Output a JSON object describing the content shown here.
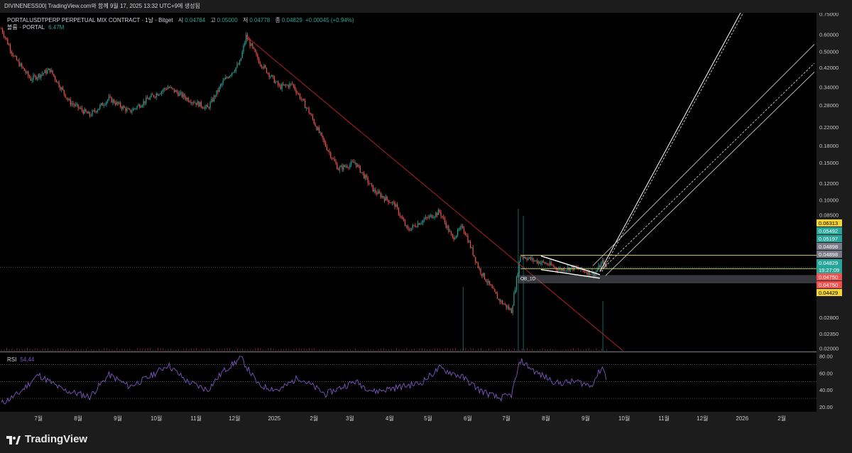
{
  "header": {
    "publisher_line": "DIVINENESS00| TradingView.com와 함께 9월 17, 2025 13:32 UTC+9에 생성됨"
  },
  "symbol": {
    "title": "PORTALUSDTPERP PERPETUAL MIX CONTRACT · 1날 · Bitget",
    "open_label": "시",
    "open": "0.04784",
    "high_label": "고",
    "high": "0.05000",
    "low_label": "저",
    "low": "0.04778",
    "close_label": "종",
    "close": "0.04829",
    "change": "+0.00045 (+0.94%)"
  },
  "volume": {
    "label": "볼륨 · PORTAL",
    "value": "6.47M"
  },
  "rsi": {
    "label": "RSI",
    "value": "54.44"
  },
  "brand": {
    "name": "TradingView"
  },
  "colors": {
    "background": "#000000",
    "frame": "#1c1c1c",
    "up": "#26a69a",
    "down": "#ef5350",
    "rsi_line": "#7e57c2",
    "trendline": "#b22222",
    "range_line": "#e6e05a"
  },
  "chart_data": [
    {
      "type": "candlestick",
      "title": "PORTALUSDTPERP PERPETUAL MIX CONTRACT · 1날 · Bitget",
      "scale": "log",
      "ylim": [
        0.0195,
        0.76
      ],
      "y_ticks": [
        "0.75000",
        "0.60000",
        "0.50000",
        "0.42000",
        "0.34000",
        "0.28000",
        "0.22000",
        "0.18000",
        "0.15000",
        "0.12000",
        "0.10000",
        "0.08500",
        "0.02800",
        "0.02350",
        "0.02000"
      ],
      "x_ticks": [
        "7월",
        "8월",
        "9월",
        "10월",
        "11월",
        "12월",
        "2025",
        "2월",
        "3월",
        "4월",
        "5월",
        "6월",
        "7월",
        "8월",
        "9월",
        "10월",
        "11월",
        "12월",
        "2026",
        "2월"
      ],
      "x_range": [
        "2024-06-01",
        "2026-02-28"
      ],
      "price_path": [
        [
          "2024-06-02",
          0.64
        ],
        [
          "2024-06-12",
          0.47
        ],
        [
          "2024-06-25",
          0.37
        ],
        [
          "2024-07-10",
          0.41
        ],
        [
          "2024-07-25",
          0.29
        ],
        [
          "2024-08-10",
          0.25
        ],
        [
          "2024-08-25",
          0.3
        ],
        [
          "2024-09-10",
          0.26
        ],
        [
          "2024-09-25",
          0.3
        ],
        [
          "2024-10-10",
          0.34
        ],
        [
          "2024-10-25",
          0.3
        ],
        [
          "2024-11-10",
          0.27
        ],
        [
          "2024-11-22",
          0.36
        ],
        [
          "2024-12-05",
          0.44
        ],
        [
          "2024-12-10",
          0.59
        ],
        [
          "2024-12-20",
          0.45
        ],
        [
          "2025-01-05",
          0.34
        ],
        [
          "2025-01-15",
          0.35
        ],
        [
          "2025-01-28",
          0.26
        ],
        [
          "2025-02-10",
          0.18
        ],
        [
          "2025-02-20",
          0.14
        ],
        [
          "2025-03-05",
          0.15
        ],
        [
          "2025-03-20",
          0.11
        ],
        [
          "2025-04-05",
          0.095
        ],
        [
          "2025-04-15",
          0.072
        ],
        [
          "2025-04-25",
          0.079
        ],
        [
          "2025-05-10",
          0.088
        ],
        [
          "2025-05-20",
          0.066
        ],
        [
          "2025-05-28",
          0.075
        ],
        [
          "2025-06-10",
          0.047
        ],
        [
          "2025-06-25",
          0.034
        ],
        [
          "2025-07-05",
          0.03
        ],
        [
          "2025-07-12",
          0.055
        ],
        [
          "2025-07-22",
          0.052
        ],
        [
          "2025-08-02",
          0.05
        ],
        [
          "2025-08-12",
          0.047
        ],
        [
          "2025-08-22",
          0.048
        ],
        [
          "2025-09-02",
          0.046
        ],
        [
          "2025-09-08",
          0.045
        ],
        [
          "2025-09-14",
          0.051
        ],
        [
          "2025-09-17",
          0.0483
        ]
      ],
      "volume_spikes": [
        [
          "2025-05-28",
          0.45
        ],
        [
          "2025-07-10",
          1.0
        ],
        [
          "2025-07-14",
          0.95
        ],
        [
          "2025-09-14",
          0.35
        ]
      ],
      "price_labels": [
        {
          "value": "0.06313",
          "color": "#f5d330",
          "text_color": "#000000"
        },
        {
          "value": "0.05492",
          "color": "#26a69a",
          "text_color": "#ffffff"
        },
        {
          "value": "0.05197",
          "color": "#26a69a",
          "text_color": "#ffffff"
        },
        {
          "value": "0.04898",
          "color": "#787b86",
          "text_color": "#ffffff"
        },
        {
          "value": "0.04898",
          "color": "#787b86",
          "text_color": "#ffffff"
        },
        {
          "value": "0.04829",
          "color": "#26a69a",
          "text_color": "#ffffff"
        },
        {
          "value": "19:27:09",
          "color": "#26a69a",
          "text_color": "#ffffff"
        },
        {
          "value": "0.04750",
          "color": "#ef5350",
          "text_color": "#ffffff"
        },
        {
          "value": "0.04750",
          "color": "#ef5350",
          "text_color": "#ffffff"
        },
        {
          "value": "0.04429",
          "color": "#f5d330",
          "text_color": "#000000"
        }
      ],
      "annotations": [
        {
          "text": "OB_1D"
        }
      ]
    },
    {
      "type": "line",
      "title": "RSI 54.44",
      "ylim": [
        14,
        84
      ],
      "y_ticks": [
        "80.00",
        "60.00",
        "40.00",
        "20.00"
      ],
      "bands": [
        70,
        50,
        30
      ],
      "series": [
        {
          "name": "RSI",
          "color": "#7e57c2",
          "points": [
            [
              "2024-06-02",
              24
            ],
            [
              "2024-06-15",
              35
            ],
            [
              "2024-07-01",
              58
            ],
            [
              "2024-07-20",
              40
            ],
            [
              "2024-08-10",
              32
            ],
            [
              "2024-08-25",
              58
            ],
            [
              "2024-09-10",
              44
            ],
            [
              "2024-09-25",
              55
            ],
            [
              "2024-10-10",
              70
            ],
            [
              "2024-10-25",
              50
            ],
            [
              "2024-11-10",
              40
            ],
            [
              "2024-11-22",
              62
            ],
            [
              "2024-12-06",
              78
            ],
            [
              "2024-12-20",
              45
            ],
            [
              "2025-01-05",
              40
            ],
            [
              "2025-01-20",
              55
            ],
            [
              "2025-02-10",
              35
            ],
            [
              "2025-03-05",
              50
            ],
            [
              "2025-03-20",
              38
            ],
            [
              "2025-04-10",
              44
            ],
            [
              "2025-04-25",
              48
            ],
            [
              "2025-05-10",
              66
            ],
            [
              "2025-05-28",
              55
            ],
            [
              "2025-06-10",
              40
            ],
            [
              "2025-06-25",
              30
            ],
            [
              "2025-07-05",
              34
            ],
            [
              "2025-07-12",
              75
            ],
            [
              "2025-07-25",
              60
            ],
            [
              "2025-08-10",
              48
            ],
            [
              "2025-08-25",
              50
            ],
            [
              "2025-09-05",
              45
            ],
            [
              "2025-09-14",
              68
            ],
            [
              "2025-09-17",
              54
            ]
          ]
        }
      ]
    }
  ]
}
